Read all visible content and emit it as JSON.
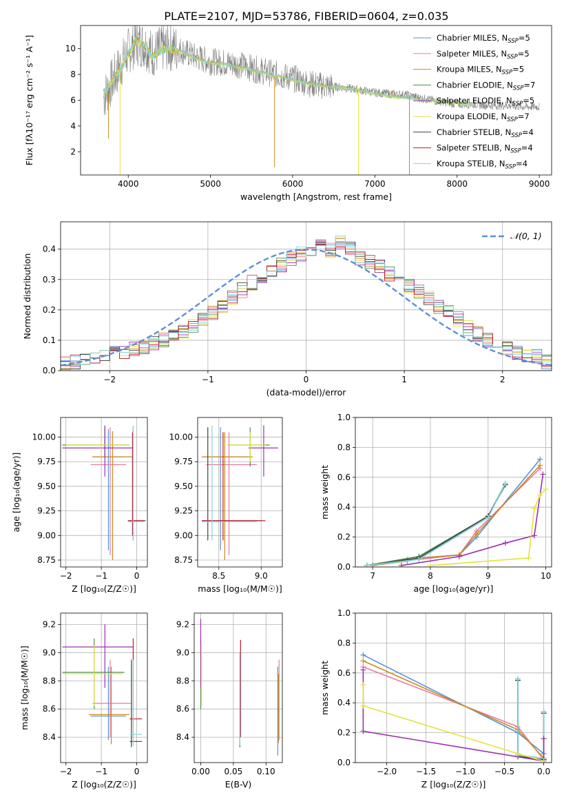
{
  "figure": {
    "title": "PLATE=2107, MJD=53786, FIBERID=0604, z=0.035"
  },
  "legend_series": [
    {
      "label": "Chabrier MILES, N",
      "sub": "SSP",
      "tail": "=5",
      "color": "#5b8fd8"
    },
    {
      "label": "Salpeter MILES, N",
      "sub": "SSP",
      "tail": "=5",
      "color": "#e878a0"
    },
    {
      "label": "Kroupa MILES, N",
      "sub": "SSP",
      "tail": "=5",
      "color": "#c98a1a"
    },
    {
      "label": "Chabrier ELODIE, N",
      "sub": "SSP",
      "tail": "=7",
      "color": "#4a8a4a"
    },
    {
      "label": "Salpeter ELODIE, N",
      "sub": "SSP",
      "tail": "=5",
      "color": "#9b2fae"
    },
    {
      "label": "Kroupa ELODIE, N",
      "sub": "SSP",
      "tail": "=7",
      "color": "#e3e33a"
    },
    {
      "label": "Chabrier STELIB, N",
      "sub": "SSP",
      "tail": "=4",
      "color": "#404040"
    },
    {
      "label": "Salpeter STELIB, N",
      "sub": "SSP",
      "tail": "=4",
      "color": "#c0182a"
    },
    {
      "label": "Kroupa STELIB, N",
      "sub": "SSP",
      "tail": "=4",
      "color": "#7ed6e0"
    }
  ],
  "chart_data": [
    {
      "id": "spectrum",
      "type": "line",
      "xlabel": "wavelength [Angstrom, rest frame]",
      "ylabel": "Flux [fλ10⁻¹⁷ erg cm⁻² s⁻¹ A⁻¹]",
      "xlim": [
        3420,
        9150
      ],
      "ylim": [
        0.2,
        11.8
      ],
      "xticks": [
        4000,
        5000,
        6000,
        7000,
        8000,
        9000
      ],
      "yticks": [
        2,
        4,
        6,
        8,
        10
      ],
      "data_series": {
        "name": "",
        "color": "#808080",
        "x": [
          3700,
          3800,
          3900,
          4000,
          4100,
          4200,
          4300,
          4400,
          4500,
          4600,
          4800,
          5000,
          5200,
          5400,
          5600,
          5800,
          6000,
          6200,
          6400,
          6600,
          6800,
          7000,
          7200,
          7400,
          7600,
          7800,
          8000,
          8200,
          8400,
          8600,
          8800,
          9000
        ],
        "y": [
          6.2,
          7.4,
          8.6,
          9.8,
          10.5,
          10.3,
          9.6,
          10.0,
          10.1,
          10.0,
          9.4,
          9.0,
          8.9,
          8.7,
          8.3,
          8.0,
          7.7,
          7.3,
          7.1,
          7.0,
          6.8,
          6.6,
          6.5,
          6.4,
          6.1,
          5.9,
          5.7,
          5.7,
          5.6,
          5.6,
          5.5,
          5.5
        ]
      },
      "model_series": {
        "name": "",
        "color": "#7ed6e0",
        "x": [
          3700,
          3800,
          3900,
          4000,
          4100,
          4200,
          4300,
          4400,
          4500,
          4600,
          4800,
          5000,
          5200,
          5400,
          5600,
          5800,
          6000,
          6200,
          6400,
          6600,
          6800,
          7000,
          7200,
          7400,
          7600,
          7800,
          8000,
          8200
        ],
        "y": [
          6.5,
          7.5,
          8.4,
          9.6,
          10.7,
          10.2,
          9.4,
          9.9,
          10.0,
          9.9,
          9.3,
          8.9,
          8.8,
          8.5,
          8.2,
          7.9,
          7.6,
          7.3,
          7.1,
          7.0,
          6.8,
          6.5,
          6.3,
          6.2,
          6.0,
          5.9,
          5.8,
          5.7
        ]
      }
    },
    {
      "id": "residuals",
      "type": "line",
      "xlabel": "(data-model)/error",
      "ylabel": "Normed distribution",
      "xlim": [
        -2.5,
        2.5
      ],
      "ylim": [
        0,
        0.49
      ],
      "xticks": [
        -2,
        -1,
        0,
        1,
        2
      ],
      "yticks": [
        0.0,
        0.1,
        0.2,
        0.3,
        0.4
      ],
      "legend": "𝒩(0, 1)",
      "gaussian": {
        "mu": 0,
        "sigma": 1,
        "color": "#5b8fd8"
      },
      "bin_edges_start": -2.5,
      "bin_width": 0.1,
      "histogram": [
        0.022,
        0.028,
        0.035,
        0.04,
        0.052,
        0.06,
        0.062,
        0.071,
        0.08,
        0.09,
        0.1,
        0.115,
        0.13,
        0.15,
        0.17,
        0.19,
        0.215,
        0.24,
        0.265,
        0.29,
        0.31,
        0.33,
        0.35,
        0.37,
        0.385,
        0.4,
        0.41,
        0.395,
        0.42,
        0.4,
        0.37,
        0.36,
        0.34,
        0.32,
        0.3,
        0.28,
        0.26,
        0.24,
        0.21,
        0.19,
        0.17,
        0.14,
        0.12,
        0.1,
        0.085,
        0.07,
        0.06,
        0.05,
        0.045,
        0.03
      ]
    },
    {
      "id": "age-vs-Z",
      "type": "scatter",
      "xlabel": "Z [log₁₀(Z/Z☉)]",
      "ylabel": "age  [log₁₀(age/yr)]",
      "xlim": [
        -2.15,
        0.3
      ],
      "ylim": [
        8.68,
        10.2
      ],
      "xticks": [
        -2,
        -1,
        0
      ],
      "yticks": [
        8.75,
        9.0,
        9.25,
        9.5,
        9.75,
        10.0
      ],
      "points": [
        {
          "x": -0.8,
          "y": 9.8,
          "xe": [
            -1.25,
            -0.35
          ],
          "ye": [
            8.85,
            10.08
          ],
          "c": 0
        },
        {
          "x": -0.75,
          "y": 9.72,
          "xe": [
            -1.3,
            -0.3
          ],
          "ye": [
            8.8,
            10.1
          ],
          "c": 1
        },
        {
          "x": -0.68,
          "y": 9.8,
          "xe": [
            -1.25,
            -0.1
          ],
          "ye": [
            8.75,
            10.06
          ],
          "c": 2
        },
        {
          "x": -0.9,
          "y": 9.92,
          "xe": [
            -2.1,
            -0.2
          ],
          "ye": [
            9.8,
            10.1
          ],
          "c": 3
        },
        {
          "x": -0.9,
          "y": 9.89,
          "xe": [
            -2.1,
            -0.1
          ],
          "ye": [
            9.6,
            10.12
          ],
          "c": 4
        },
        {
          "x": -1.0,
          "y": 9.92,
          "xe": [
            -2.0,
            -0.2
          ],
          "ye": [
            9.8,
            10.1
          ],
          "c": 5
        },
        {
          "x": -0.1,
          "y": 9.15,
          "xe": [
            -0.25,
            0.25
          ],
          "ye": [
            8.95,
            10.1
          ],
          "c": 6
        },
        {
          "x": -0.12,
          "y": 9.15,
          "xe": [
            -0.25,
            0.2
          ],
          "ye": [
            9.0,
            10.05
          ],
          "c": 7
        },
        {
          "x": -0.1,
          "y": 9.14,
          "xe": [
            -0.25,
            0.2
          ],
          "ye": [
            8.95,
            10.12
          ],
          "c": 8
        }
      ]
    },
    {
      "id": "age-vs-mass",
      "type": "scatter",
      "xlabel": "mass [log₁₀(M/M☉)]",
      "ylabel": "",
      "xlim": [
        8.25,
        9.25
      ],
      "ylim": [
        8.68,
        10.2
      ],
      "xticks": [
        8.5,
        9.0
      ],
      "yticks": [
        8.75,
        9.0,
        9.25,
        9.5,
        9.75,
        10.0
      ],
      "points": [
        {
          "x": 8.52,
          "y": 9.8,
          "xe": [
            8.3,
            8.85
          ],
          "ye": [
            8.85,
            10.1
          ],
          "c": 0
        },
        {
          "x": 8.62,
          "y": 9.72,
          "xe": [
            8.35,
            8.95
          ],
          "ye": [
            8.8,
            10.05
          ],
          "c": 1
        },
        {
          "x": 8.57,
          "y": 9.8,
          "xe": [
            8.3,
            8.9
          ],
          "ye": [
            8.75,
            10.05
          ],
          "c": 2
        },
        {
          "x": 8.87,
          "y": 9.92,
          "xe": [
            8.6,
            9.1
          ],
          "ye": [
            9.7,
            10.1
          ],
          "c": 3
        },
        {
          "x": 9.03,
          "y": 9.89,
          "xe": [
            8.85,
            9.2
          ],
          "ye": [
            9.6,
            10.12
          ],
          "c": 4
        },
        {
          "x": 8.87,
          "y": 9.92,
          "xe": [
            8.6,
            9.05
          ],
          "ye": [
            9.75,
            10.05
          ],
          "c": 5
        },
        {
          "x": 8.37,
          "y": 9.15,
          "xe": [
            8.3,
            9.0
          ],
          "ye": [
            8.95,
            10.1
          ],
          "c": 6
        },
        {
          "x": 8.55,
          "y": 9.15,
          "xe": [
            8.3,
            9.05
          ],
          "ye": [
            8.95,
            10.05
          ],
          "c": 7
        },
        {
          "x": 8.42,
          "y": 9.14,
          "xe": [
            8.3,
            8.95
          ],
          "ye": [
            8.95,
            10.12
          ],
          "c": 8
        }
      ]
    },
    {
      "id": "weight-vs-age",
      "type": "line",
      "xlabel": "age  [log₁₀(age/yr)]",
      "ylabel": "mass weight",
      "xlim": [
        6.7,
        10.1
      ],
      "ylim": [
        0,
        1.0
      ],
      "xticks": [
        7,
        8,
        9,
        10
      ],
      "yticks": [
        0.0,
        0.2,
        0.4,
        0.6,
        0.8,
        1.0
      ],
      "series": [
        {
          "c": 0,
          "x": [
            7.0,
            7.6,
            7.8,
            8.5,
            8.8,
            9.9
          ],
          "y": [
            0.01,
            0.04,
            0.06,
            0.08,
            0.2,
            0.72
          ]
        },
        {
          "c": 1,
          "x": [
            7.0,
            7.6,
            7.8,
            8.5,
            8.8,
            9.9
          ],
          "y": [
            0.01,
            0.05,
            0.05,
            0.08,
            0.24,
            0.66
          ]
        },
        {
          "c": 2,
          "x": [
            7.0,
            7.6,
            7.8,
            8.5,
            8.8,
            9.9
          ],
          "y": [
            0.01,
            0.04,
            0.06,
            0.08,
            0.22,
            0.68
          ]
        },
        {
          "c": 3,
          "x": [
            6.9,
            7.8,
            9.0,
            9.3
          ],
          "y": [
            0.01,
            0.07,
            0.34,
            0.56
          ]
        },
        {
          "c": 6,
          "x": [
            6.9,
            7.8,
            9.0,
            9.3
          ],
          "y": [
            0.01,
            0.06,
            0.34,
            0.55
          ]
        },
        {
          "c": 8,
          "x": [
            6.9,
            7.8,
            9.0,
            9.3
          ],
          "y": [
            0.01,
            0.05,
            0.33,
            0.56
          ]
        },
        {
          "c": 4,
          "x": [
            7.5,
            8.5,
            9.3,
            9.8,
            9.95
          ],
          "y": [
            0.01,
            0.07,
            0.16,
            0.21,
            0.62
          ]
        },
        {
          "c": 5,
          "x": [
            8.0,
            9.7,
            9.8,
            9.9,
            10.0
          ],
          "y": [
            0.01,
            0.06,
            0.39,
            0.48,
            0.52
          ]
        }
      ]
    },
    {
      "id": "mass-vs-Z",
      "type": "scatter",
      "xlabel": "Z [log₁₀(Z/Z☉)]",
      "ylabel": "mass [log₁₀(M/M☉)]",
      "xlim": [
        -2.15,
        0.3
      ],
      "ylim": [
        8.22,
        9.28
      ],
      "xticks": [
        -2,
        -1,
        0
      ],
      "yticks": [
        8.4,
        8.6,
        8.8,
        9.0,
        9.2
      ],
      "points": [
        {
          "x": -0.8,
          "y": 8.55,
          "xe": [
            -1.3,
            -0.3
          ],
          "ye": [
            8.38,
            8.9
          ],
          "c": 0
        },
        {
          "x": -0.75,
          "y": 8.64,
          "xe": [
            -1.25,
            -0.15
          ],
          "ye": [
            8.4,
            8.95
          ],
          "c": 1
        },
        {
          "x": -0.72,
          "y": 8.56,
          "xe": [
            -1.35,
            -0.2
          ],
          "ye": [
            8.35,
            8.9
          ],
          "c": 2
        },
        {
          "x": -1.2,
          "y": 8.86,
          "xe": [
            -2.1,
            -0.35
          ],
          "ye": [
            8.6,
            9.1
          ],
          "c": 3
        },
        {
          "x": -0.9,
          "y": 9.04,
          "xe": [
            -2.1,
            -0.1
          ],
          "ye": [
            8.75,
            9.2
          ],
          "c": 4
        },
        {
          "x": -1.2,
          "y": 8.85,
          "xe": [
            -2.1,
            -0.4
          ],
          "ye": [
            8.62,
            9.05
          ],
          "c": 5
        },
        {
          "x": -0.15,
          "y": 8.37,
          "xe": [
            -0.2,
            0.15
          ],
          "ye": [
            8.33,
            8.95
          ],
          "c": 6
        },
        {
          "x": -0.1,
          "y": 8.53,
          "xe": [
            -0.2,
            0.15
          ],
          "ye": [
            8.4,
            9.1
          ],
          "c": 7
        },
        {
          "x": -0.1,
          "y": 8.42,
          "xe": [
            -0.2,
            0.15
          ],
          "ye": [
            8.34,
            8.95
          ],
          "c": 8
        }
      ]
    },
    {
      "id": "mass-vs-ebv",
      "type": "scatter",
      "xlabel": "E(B-V)",
      "ylabel": "",
      "xlim": [
        -0.01,
        0.125
      ],
      "ylim": [
        8.22,
        9.28
      ],
      "xticks": [
        0.0,
        0.05,
        0.1
      ],
      "xtick_labels": [
        "0.00",
        "0.05",
        "0.10"
      ],
      "yticks": [
        8.4,
        8.6,
        8.8,
        9.0,
        9.2
      ],
      "points": [
        {
          "x": 0.118,
          "y": 8.55,
          "ye": [
            8.27,
            8.9
          ],
          "c": 0
        },
        {
          "x": 0.12,
          "y": 8.64,
          "ye": [
            8.38,
            8.95
          ],
          "c": 1
        },
        {
          "x": 0.119,
          "y": 8.56,
          "ye": [
            8.36,
            8.85
          ],
          "c": 2
        },
        {
          "x": 0.0,
          "y": 8.86,
          "ye": [
            8.6,
            9.1
          ],
          "c": 3
        },
        {
          "x": 0.0,
          "y": 9.04,
          "ye": [
            8.75,
            9.24
          ],
          "c": 4
        },
        {
          "x": 0.001,
          "y": 8.85,
          "ye": [
            8.62,
            9.05
          ],
          "c": 5
        },
        {
          "x": 0.06,
          "y": 8.37,
          "ye": [
            8.33,
            9.0
          ],
          "c": 6
        },
        {
          "x": 0.061,
          "y": 8.53,
          "ye": [
            8.4,
            9.09
          ],
          "c": 7
        },
        {
          "x": 0.06,
          "y": 8.42,
          "ye": [
            8.34,
            9.0
          ],
          "c": 8
        }
      ]
    },
    {
      "id": "weight-vs-Z",
      "type": "line",
      "xlabel": "Z [log₁₀(Z/Z☉)]",
      "ylabel": "mass weight",
      "xlim": [
        -2.4,
        0.1
      ],
      "ylim": [
        0,
        1.0
      ],
      "xticks": [
        -2.0,
        -1.5,
        -1.0,
        -0.5,
        0.0
      ],
      "yticks": [
        0.0,
        0.2,
        0.4,
        0.6,
        0.8,
        1.0
      ],
      "series": [
        {
          "c": 0,
          "x": [
            -2.3,
            -0.33,
            0.0
          ],
          "y": [
            0.72,
            0.2,
            0.06
          ]
        },
        {
          "c": 1,
          "x": [
            -2.3,
            -0.33,
            0.0
          ],
          "y": [
            0.64,
            0.24,
            0.02
          ]
        },
        {
          "c": 2,
          "x": [
            -2.3,
            -0.33,
            0.0
          ],
          "y": [
            0.68,
            0.22,
            0.03
          ]
        },
        {
          "c": 3,
          "x": [
            -0.33,
            -0.33,
            0.0,
            0.0
          ],
          "y": [
            0.56,
            0.05,
            0.01,
            0.34
          ]
        },
        {
          "c": 6,
          "x": [
            -0.33,
            -0.33,
            0.0,
            0.0
          ],
          "y": [
            0.55,
            0.04,
            0.02,
            0.33
          ]
        },
        {
          "c": 8,
          "x": [
            -0.33,
            -0.33,
            0.0,
            0.0
          ],
          "y": [
            0.56,
            0.05,
            0.03,
            0.34
          ]
        },
        {
          "c": 4,
          "x": [
            -2.3,
            -2.3,
            0.0,
            0.0
          ],
          "y": [
            0.62,
            0.21,
            0.01,
            0.16
          ]
        },
        {
          "c": 5,
          "x": [
            -2.3,
            -2.3,
            -0.33,
            0.0
          ],
          "y": [
            0.52,
            0.38,
            0.06,
            0.01
          ]
        }
      ]
    }
  ]
}
